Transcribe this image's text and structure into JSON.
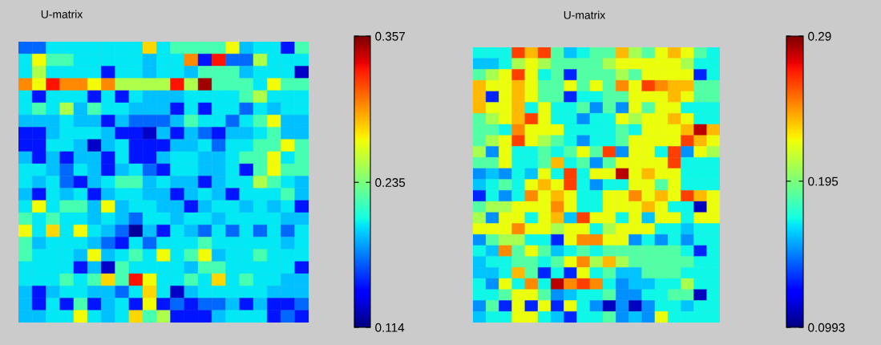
{
  "chart_data": [
    {
      "type": "heatmap",
      "title": "U-matrix",
      "tick_labels": false,
      "clim": [
        0.114,
        0.357
      ],
      "cticks": [
        0.114,
        0.235,
        0.357
      ],
      "categories": [
        null,
        null,
        null,
        null,
        null,
        null,
        null,
        null,
        null,
        null,
        null,
        null,
        null,
        null,
        null,
        null,
        null,
        null,
        null,
        null,
        null
      ],
      "y_categories": [
        null,
        null,
        null,
        null,
        null,
        null,
        null,
        null,
        null,
        null,
        null,
        null,
        null,
        null,
        null,
        null,
        null,
        null,
        null,
        null,
        null,
        null,
        null
      ],
      "cells": [
        [
          0.17,
          0.17,
          0.2,
          0.2,
          0.2,
          0.2,
          0.2,
          0.2,
          0.2,
          0.28,
          0.2,
          0.22,
          0.22,
          0.22,
          0.22,
          0.27,
          0.19,
          0.2,
          0.2,
          0.15,
          0.22
        ],
        [
          0.2,
          0.27,
          0.22,
          0.22,
          0.2,
          0.2,
          0.2,
          0.2,
          0.2,
          0.19,
          0.2,
          0.2,
          0.3,
          0.15,
          0.33,
          0.17,
          0.17,
          0.25,
          0.2,
          0.2,
          0.2
        ],
        [
          0.2,
          0.25,
          0.2,
          0.2,
          0.2,
          0.2,
          0.15,
          0.2,
          0.2,
          0.19,
          0.2,
          0.2,
          0.19,
          0.22,
          0.22,
          0.22,
          0.19,
          0.2,
          0.2,
          0.2,
          0.13
        ],
        [
          0.3,
          0.27,
          0.33,
          0.3,
          0.3,
          0.27,
          0.3,
          0.25,
          0.25,
          0.25,
          0.25,
          0.33,
          0.25,
          0.35,
          0.22,
          0.22,
          0.22,
          0.2,
          0.27,
          0.22,
          0.22
        ],
        [
          0.2,
          0.15,
          0.2,
          0.2,
          0.2,
          0.15,
          0.2,
          0.15,
          0.2,
          0.19,
          0.19,
          0.19,
          0.2,
          0.2,
          0.2,
          0.2,
          0.22,
          0.25,
          0.2,
          0.2,
          0.2
        ],
        [
          0.2,
          0.22,
          0.2,
          0.25,
          0.19,
          0.22,
          0.2,
          0.2,
          0.19,
          0.19,
          0.19,
          0.15,
          0.2,
          0.15,
          0.2,
          0.2,
          0.17,
          0.2,
          0.19,
          0.2,
          0.2
        ],
        [
          0.19,
          0.19,
          0.19,
          0.2,
          0.19,
          0.19,
          0.15,
          0.19,
          0.17,
          0.17,
          0.17,
          0.19,
          0.22,
          0.2,
          0.2,
          0.17,
          0.2,
          0.22,
          0.27,
          0.19,
          0.19
        ],
        [
          0.15,
          0.15,
          0.19,
          0.2,
          0.2,
          0.2,
          0.19,
          0.15,
          0.15,
          0.13,
          0.19,
          0.15,
          0.19,
          0.17,
          0.15,
          0.19,
          0.19,
          0.2,
          0.22,
          0.19,
          0.19
        ],
        [
          0.15,
          0.15,
          0.2,
          0.2,
          0.19,
          0.13,
          0.19,
          0.2,
          0.15,
          0.15,
          0.15,
          0.19,
          0.19,
          0.2,
          0.17,
          0.2,
          0.2,
          0.22,
          0.22,
          0.27,
          0.22
        ],
        [
          0.19,
          0.15,
          0.19,
          0.15,
          0.19,
          0.19,
          0.15,
          0.2,
          0.15,
          0.15,
          0.19,
          0.2,
          0.2,
          0.19,
          0.19,
          0.2,
          0.22,
          0.22,
          0.27,
          0.2,
          0.22
        ],
        [
          0.2,
          0.2,
          0.19,
          0.17,
          0.2,
          0.19,
          0.15,
          0.19,
          0.2,
          0.17,
          0.15,
          0.2,
          0.2,
          0.19,
          0.19,
          0.2,
          0.15,
          0.22,
          0.27,
          0.22,
          0.22
        ],
        [
          0.2,
          0.19,
          0.2,
          0.17,
          0.15,
          0.19,
          0.2,
          0.22,
          0.22,
          0.19,
          0.2,
          0.19,
          0.19,
          0.15,
          0.19,
          0.2,
          0.2,
          0.25,
          0.22,
          0.2,
          0.19
        ],
        [
          0.19,
          0.15,
          0.2,
          0.19,
          0.2,
          0.15,
          0.19,
          0.2,
          0.2,
          0.19,
          0.19,
          0.15,
          0.19,
          0.2,
          0.19,
          0.15,
          0.2,
          0.2,
          0.2,
          0.22,
          0.19
        ],
        [
          0.2,
          0.27,
          0.2,
          0.22,
          0.22,
          0.19,
          0.27,
          0.19,
          0.2,
          0.2,
          0.19,
          0.19,
          0.15,
          0.19,
          0.2,
          0.2,
          0.19,
          0.2,
          0.19,
          0.2,
          0.15
        ],
        [
          0.22,
          0.2,
          0.22,
          0.2,
          0.2,
          0.19,
          0.2,
          0.19,
          0.17,
          0.2,
          0.2,
          0.19,
          0.2,
          0.2,
          0.19,
          0.2,
          0.2,
          0.2,
          0.2,
          0.19,
          0.19
        ],
        [
          0.27,
          0.2,
          0.28,
          0.2,
          0.27,
          0.2,
          0.19,
          0.17,
          0.12,
          0.19,
          0.15,
          0.2,
          0.19,
          0.17,
          0.2,
          0.17,
          0.2,
          0.17,
          0.2,
          0.17,
          0.2
        ],
        [
          0.22,
          0.19,
          0.2,
          0.2,
          0.2,
          0.19,
          0.17,
          0.15,
          0.2,
          0.17,
          0.2,
          0.2,
          0.2,
          0.22,
          0.2,
          0.2,
          0.2,
          0.2,
          0.2,
          0.19,
          0.2
        ],
        [
          0.22,
          0.2,
          0.2,
          0.2,
          0.19,
          0.27,
          0.19,
          0.2,
          0.22,
          0.2,
          0.27,
          0.2,
          0.22,
          0.27,
          0.19,
          0.2,
          0.2,
          0.22,
          0.2,
          0.2,
          0.2
        ],
        [
          0.2,
          0.2,
          0.2,
          0.2,
          0.15,
          0.19,
          0.13,
          0.22,
          0.2,
          0.2,
          0.2,
          0.2,
          0.19,
          0.22,
          0.22,
          0.2,
          0.2,
          0.2,
          0.2,
          0.2,
          0.15
        ],
        [
          0.2,
          0.2,
          0.2,
          0.22,
          0.2,
          0.22,
          0.28,
          0.22,
          0.33,
          0.27,
          0.2,
          0.2,
          0.22,
          0.2,
          0.28,
          0.2,
          0.22,
          0.2,
          0.2,
          0.19,
          0.19
        ],
        [
          0.19,
          0.15,
          0.19,
          0.2,
          0.2,
          0.19,
          0.19,
          0.17,
          0.2,
          0.28,
          0.2,
          0.13,
          0.19,
          0.2,
          0.2,
          0.2,
          0.2,
          0.2,
          0.19,
          0.19,
          0.19
        ],
        [
          0.19,
          0.15,
          0.2,
          0.15,
          0.22,
          0.15,
          0.19,
          0.2,
          0.15,
          0.27,
          0.15,
          0.17,
          0.15,
          0.17,
          0.17,
          0.19,
          0.15,
          0.19,
          0.15,
          0.15,
          0.17
        ],
        [
          0.19,
          0.19,
          0.2,
          0.2,
          0.27,
          0.2,
          0.19,
          0.2,
          0.28,
          0.22,
          0.25,
          0.15,
          0.15,
          0.15,
          0.19,
          0.2,
          0.2,
          0.2,
          0.15,
          0.17,
          0.15
        ]
      ]
    },
    {
      "type": "heatmap",
      "title": "U-matrix",
      "tick_labels": false,
      "clim": [
        0.0993,
        0.29
      ],
      "cticks": [
        0.0993,
        0.195,
        0.29
      ],
      "categories": [
        null,
        null,
        null,
        null,
        null,
        null,
        null,
        null,
        null,
        null,
        null,
        null,
        null,
        null,
        null,
        null,
        null,
        null,
        null
      ],
      "y_categories": [
        null,
        null,
        null,
        null,
        null,
        null,
        null,
        null,
        null,
        null,
        null,
        null,
        null,
        null,
        null,
        null,
        null,
        null,
        null,
        null,
        null,
        null,
        null,
        null,
        null
      ],
      "cells": [
        [
          0.17,
          0.17,
          0.17,
          0.26,
          0.235,
          0.26,
          0.185,
          0.16,
          0.17,
          0.185,
          0.185,
          0.235,
          0.205,
          0.185,
          0.22,
          0.235,
          0.22,
          0.185,
          0.17
        ],
        [
          0.16,
          0.16,
          0.17,
          0.205,
          0.22,
          0.205,
          0.185,
          0.185,
          0.185,
          0.185,
          0.205,
          0.22,
          0.22,
          0.22,
          0.22,
          0.22,
          0.205,
          0.17,
          0.17
        ],
        [
          0.185,
          0.205,
          0.22,
          0.26,
          0.22,
          0.17,
          0.185,
          0.13,
          0.185,
          0.185,
          0.185,
          0.205,
          0.185,
          0.22,
          0.22,
          0.22,
          0.22,
          0.13,
          0.17
        ],
        [
          0.235,
          0.22,
          0.22,
          0.235,
          0.22,
          0.185,
          0.185,
          0.22,
          0.185,
          0.22,
          0.185,
          0.245,
          0.22,
          0.26,
          0.245,
          0.235,
          0.235,
          0.185,
          0.185
        ],
        [
          0.235,
          0.13,
          0.22,
          0.235,
          0.22,
          0.185,
          0.185,
          0.13,
          0.17,
          0.17,
          0.185,
          0.185,
          0.22,
          0.22,
          0.22,
          0.235,
          0.22,
          0.185,
          0.185
        ],
        [
          0.235,
          0.22,
          0.22,
          0.235,
          0.17,
          0.22,
          0.17,
          0.17,
          0.185,
          0.15,
          0.185,
          0.15,
          0.22,
          0.185,
          0.22,
          0.22,
          0.17,
          0.17,
          0.17
        ],
        [
          0.185,
          0.205,
          0.22,
          0.235,
          0.26,
          0.22,
          0.17,
          0.17,
          0.15,
          0.17,
          0.17,
          0.22,
          0.205,
          0.22,
          0.22,
          0.235,
          0.22,
          0.17,
          0.17
        ],
        [
          0.185,
          0.185,
          0.17,
          0.245,
          0.22,
          0.22,
          0.22,
          0.17,
          0.17,
          0.17,
          0.17,
          0.185,
          0.17,
          0.22,
          0.22,
          0.22,
          0.235,
          0.28,
          0.235
        ],
        [
          0.185,
          0.205,
          0.22,
          0.26,
          0.22,
          0.205,
          0.185,
          0.17,
          0.15,
          0.17,
          0.17,
          0.185,
          0.22,
          0.22,
          0.22,
          0.22,
          0.26,
          0.235,
          0.22
        ],
        [
          0.205,
          0.15,
          0.22,
          0.17,
          0.17,
          0.185,
          0.17,
          0.185,
          0.22,
          0.185,
          0.26,
          0.15,
          0.22,
          0.22,
          0.17,
          0.26,
          0.15,
          0.22,
          0.205
        ],
        [
          0.185,
          0.185,
          0.22,
          0.17,
          0.17,
          0.185,
          0.235,
          0.17,
          0.185,
          0.15,
          0.185,
          0.22,
          0.22,
          0.22,
          0.22,
          0.26,
          0.17,
          0.17,
          0.17
        ],
        [
          0.15,
          0.16,
          0.15,
          0.17,
          0.16,
          0.22,
          0.17,
          0.26,
          0.17,
          0.22,
          0.22,
          0.28,
          0.22,
          0.235,
          0.22,
          0.22,
          0.17,
          0.17,
          0.17
        ],
        [
          0.16,
          0.17,
          0.185,
          0.17,
          0.22,
          0.235,
          0.22,
          0.26,
          0.17,
          0.15,
          0.17,
          0.17,
          0.22,
          0.22,
          0.185,
          0.22,
          0.17,
          0.17,
          0.17
        ],
        [
          0.13,
          0.17,
          0.15,
          0.17,
          0.245,
          0.22,
          0.235,
          0.22,
          0.17,
          0.17,
          0.22,
          0.22,
          0.245,
          0.22,
          0.235,
          0.22,
          0.26,
          0.235,
          0.22
        ],
        [
          0.185,
          0.205,
          0.205,
          0.22,
          0.22,
          0.22,
          0.245,
          0.22,
          0.17,
          0.17,
          0.22,
          0.22,
          0.22,
          0.235,
          0.22,
          0.17,
          0.17,
          0.11,
          0.22
        ],
        [
          0.205,
          0.15,
          0.22,
          0.22,
          0.17,
          0.22,
          0.235,
          0.16,
          0.26,
          0.22,
          0.22,
          0.17,
          0.22,
          0.16,
          0.22,
          0.22,
          0.17,
          0.22,
          0.22
        ],
        [
          0.22,
          0.22,
          0.22,
          0.245,
          0.22,
          0.22,
          0.205,
          0.22,
          0.22,
          0.17,
          0.205,
          0.22,
          0.22,
          0.22,
          0.17,
          0.17,
          0.16,
          0.17,
          0.17
        ],
        [
          0.15,
          0.185,
          0.205,
          0.205,
          0.17,
          0.17,
          0.13,
          0.22,
          0.245,
          0.245,
          0.22,
          0.22,
          0.15,
          0.17,
          0.15,
          0.17,
          0.15,
          0.17,
          0.17
        ],
        [
          0.17,
          0.16,
          0.245,
          0.185,
          0.22,
          0.185,
          0.16,
          0.17,
          0.185,
          0.17,
          0.185,
          0.185,
          0.185,
          0.185,
          0.185,
          0.185,
          0.17,
          0.13,
          0.17
        ],
        [
          0.16,
          0.17,
          0.17,
          0.185,
          0.185,
          0.17,
          0.185,
          0.22,
          0.245,
          0.205,
          0.235,
          0.205,
          0.185,
          0.185,
          0.185,
          0.185,
          0.185,
          0.17,
          0.17
        ],
        [
          0.16,
          0.16,
          0.17,
          0.235,
          0.185,
          0.13,
          0.17,
          0.13,
          0.22,
          0.17,
          0.185,
          0.16,
          0.16,
          0.185,
          0.185,
          0.185,
          0.17,
          0.17,
          0.17
        ],
        [
          0.17,
          0.15,
          0.22,
          0.17,
          0.245,
          0.17,
          0.28,
          0.245,
          0.26,
          0.245,
          0.17,
          0.15,
          0.16,
          0.16,
          0.17,
          0.17,
          0.205,
          0.17,
          0.17
        ],
        [
          0.17,
          0.17,
          0.185,
          0.22,
          0.22,
          0.185,
          0.15,
          0.16,
          0.17,
          0.17,
          0.185,
          0.15,
          0.15,
          0.17,
          0.17,
          0.185,
          0.185,
          0.11,
          0.17
        ],
        [
          0.15,
          0.185,
          0.13,
          0.22,
          0.13,
          0.22,
          0.13,
          0.22,
          0.17,
          0.15,
          0.11,
          0.15,
          0.11,
          0.15,
          0.17,
          0.17,
          0.16,
          0.17,
          0.17
        ],
        [
          0.16,
          0.17,
          0.17,
          0.22,
          0.22,
          0.17,
          0.16,
          0.13,
          0.17,
          0.17,
          0.185,
          0.15,
          0.16,
          0.15,
          0.22,
          0.17,
          0.17,
          0.17,
          0.17
        ]
      ]
    }
  ]
}
